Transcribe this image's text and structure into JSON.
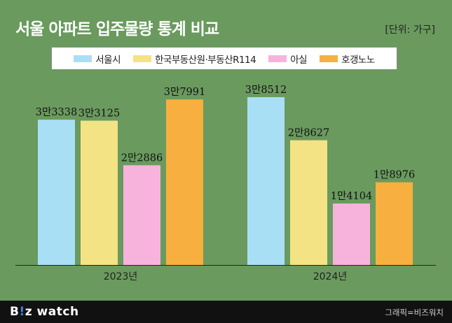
{
  "header": {
    "title": "서울 아파트 입주물량 통계 비교",
    "unit": "[단위: 가구]"
  },
  "footer": {
    "logo_b": "B",
    "logo_i": "!",
    "logo_z": "z",
    "logo_rest": " watch",
    "credit": "그래픽=비즈워치"
  },
  "colors": {
    "background": "#6a9a5e",
    "axis": "#222222"
  },
  "chart_data": {
    "type": "bar",
    "categories": [
      "2023년",
      "2024년"
    ],
    "series": [
      {
        "name": "서울시",
        "color": "#a9dff5",
        "values": [
          33338,
          38512
        ],
        "labels": [
          "3만3338",
          "3만8512"
        ]
      },
      {
        "name": "한국부동산원·부동산R114",
        "color": "#f3e384",
        "values": [
          33125,
          28627
        ],
        "labels": [
          "3만3125",
          "2만8627"
        ]
      },
      {
        "name": "아실",
        "color": "#f8b3dc",
        "values": [
          22886,
          14104
        ],
        "labels": [
          "2만2886",
          "1만4104"
        ]
      },
      {
        "name": "호갱노노",
        "color": "#f7b03f",
        "values": [
          37991,
          18976
        ],
        "labels": [
          "3만7991",
          "1만8976"
        ]
      }
    ],
    "ylim": [
      0,
      40000
    ],
    "legend_position": "top",
    "grid": false
  }
}
